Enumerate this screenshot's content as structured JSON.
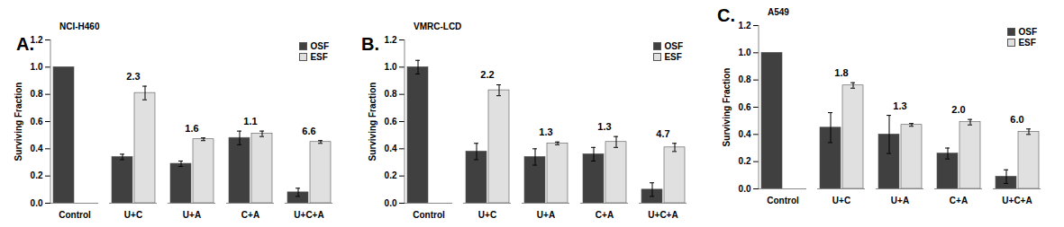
{
  "chart_data": [
    {
      "type": "bar",
      "panel": "A.",
      "title": "NCI-H460",
      "categories": [
        "Control",
        "U+C",
        "U+A",
        "C+A",
        "U+C+A"
      ],
      "y_label": "Surviving Fraction",
      "series": [
        {
          "name": "OSF",
          "color": "#404040",
          "values": [
            1.0,
            0.34,
            0.29,
            0.48,
            0.08
          ],
          "errors": [
            0,
            0.02,
            0.02,
            0.05,
            0.03
          ]
        },
        {
          "name": "ESF",
          "color": "#e0e0e0",
          "values": [
            null,
            0.81,
            0.47,
            0.51,
            0.45
          ],
          "errors": [
            null,
            0.05,
            0.01,
            0.02,
            0.01
          ]
        }
      ],
      "annotations": [
        {
          "category": "U+C",
          "text": "2.3"
        },
        {
          "category": "U+A",
          "text": "1.6"
        },
        {
          "category": "C+A",
          "text": "1.1"
        },
        {
          "category": "U+C+A",
          "text": "6.6"
        }
      ],
      "ylim": [
        0,
        1.2
      ],
      "yticks": [
        {
          "value": 0,
          "label": "0.0"
        },
        {
          "value": 0.2,
          "label": "0.2"
        },
        {
          "value": 0.4,
          "label": "0.4"
        },
        {
          "value": 0.6,
          "label": "0.6"
        },
        {
          "value": 0.8,
          "label": "0.8"
        },
        {
          "value": 1.0,
          "label": "1.0"
        },
        {
          "value": 1.2,
          "label": "1.2"
        }
      ],
      "legend": "top-right",
      "grid": false
    },
    {
      "type": "bar",
      "panel": "B.",
      "title": "VMRC-LCD",
      "categories": [
        "Control",
        "U+C",
        "U+A",
        "C+A",
        "U+C+A"
      ],
      "y_label": "Surviving Fraction",
      "series": [
        {
          "name": "OSF",
          "color": "#404040",
          "values": [
            1.0,
            0.38,
            0.34,
            0.36,
            0.1
          ],
          "errors": [
            0.05,
            0.06,
            0.06,
            0.05,
            0.05
          ]
        },
        {
          "name": "ESF",
          "color": "#e0e0e0",
          "values": [
            null,
            0.83,
            0.44,
            0.45,
            0.41
          ],
          "errors": [
            null,
            0.04,
            0.01,
            0.04,
            0.03
          ]
        }
      ],
      "annotations": [
        {
          "category": "U+C",
          "text": "2.2"
        },
        {
          "category": "U+A",
          "text": "1.3"
        },
        {
          "category": "C+A",
          "text": "1.3"
        },
        {
          "category": "U+C+A",
          "text": "4.7"
        }
      ],
      "ylim": [
        0,
        1.2
      ],
      "yticks": [
        {
          "value": 0,
          "label": "0.0"
        },
        {
          "value": 0.2,
          "label": "0.2"
        },
        {
          "value": 0.4,
          "label": "0.4"
        },
        {
          "value": 0.6,
          "label": "0.6"
        },
        {
          "value": 0.8,
          "label": "0.8"
        },
        {
          "value": 1.0,
          "label": "1.0"
        },
        {
          "value": 1.2,
          "label": "1.2"
        }
      ],
      "legend": "top-right",
      "grid": false
    },
    {
      "type": "bar",
      "panel": "C.",
      "title": "A549",
      "categories": [
        "Control",
        "U+C",
        "U+A",
        "C+A",
        "U+C+A"
      ],
      "y_label": "Surviving Fraction",
      "series": [
        {
          "name": "OSF",
          "color": "#404040",
          "values": [
            1.0,
            0.45,
            0.4,
            0.26,
            0.09
          ],
          "errors": [
            0,
            0.11,
            0.14,
            0.04,
            0.05
          ]
        },
        {
          "name": "ESF",
          "color": "#e0e0e0",
          "values": [
            null,
            0.76,
            0.47,
            0.49,
            0.42
          ],
          "errors": [
            null,
            0.02,
            0.01,
            0.02,
            0.02
          ]
        }
      ],
      "annotations": [
        {
          "category": "U+C",
          "text": "1.8"
        },
        {
          "category": "U+A",
          "text": "1.3"
        },
        {
          "category": "C+A",
          "text": "2.0"
        },
        {
          "category": "U+C+A",
          "text": "6.0"
        }
      ],
      "ylim": [
        0,
        1.2
      ],
      "yticks": [
        {
          "value": 0,
          "label": "0.0"
        },
        {
          "value": 0.2,
          "label": "0.2"
        },
        {
          "value": 0.4,
          "label": "0.4"
        },
        {
          "value": 0.6,
          "label": "0.6"
        },
        {
          "value": 0.8,
          "label": "0.8"
        },
        {
          "value": 1.0,
          "label": "1.0"
        },
        {
          "value": 1.2,
          "label": "1.2"
        }
      ],
      "legend": "top-right",
      "grid": false
    }
  ]
}
